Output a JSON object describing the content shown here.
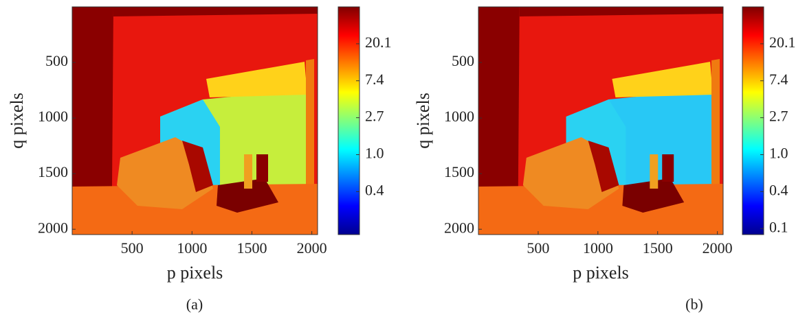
{
  "chart_data": [
    {
      "type": "image",
      "caption": "(a)",
      "xlabel": "p pixels",
      "ylabel": "q pixels",
      "xlim": [
        0,
        2048
      ],
      "ylim": [
        2048,
        0
      ],
      "xticks": [
        500,
        1000,
        1500,
        2000
      ],
      "yticks": [
        500,
        1000,
        1500,
        2000
      ],
      "colorbar": {
        "scale": "log",
        "colormap": "jet",
        "lim": [
          0.115,
          54.6
        ],
        "ticks": [
          {
            "value": 20.09,
            "label": "20.1"
          },
          {
            "value": 7.389,
            "label": "7.4"
          },
          {
            "value": 2.718,
            "label": "2.7"
          },
          {
            "value": 1.0,
            "label": "1.0"
          },
          {
            "value": 0.368,
            "label": "0.4"
          }
        ]
      }
    },
    {
      "type": "image",
      "caption": "(b)",
      "xlabel": "p pixels",
      "ylabel": "q pixels",
      "xlim": [
        0,
        2048
      ],
      "ylim": [
        2048,
        0
      ],
      "xticks": [
        500,
        1000,
        1500,
        2000
      ],
      "yticks": [
        500,
        1000,
        1500,
        2000
      ],
      "colorbar": {
        "scale": "log",
        "colormap": "jet",
        "lim": [
          0.115,
          54.6
        ],
        "ticks": [
          {
            "value": 20.09,
            "label": "20.1"
          },
          {
            "value": 7.389,
            "label": "7.4"
          },
          {
            "value": 2.718,
            "label": "2.7"
          },
          {
            "value": 1.0,
            "label": "1.0"
          },
          {
            "value": 0.368,
            "label": "0.4"
          },
          {
            "value": 0.135,
            "label": "0.1"
          }
        ]
      }
    }
  ]
}
